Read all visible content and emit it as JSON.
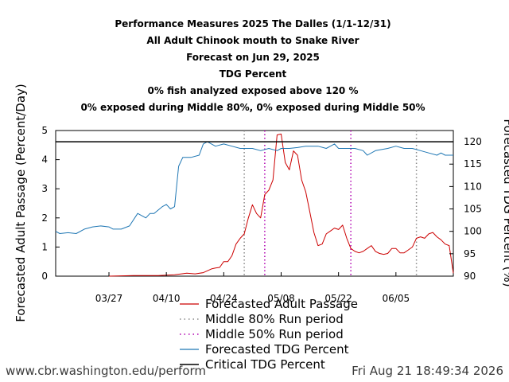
{
  "chart_data": {
    "type": "line",
    "title_lines": [
      "Performance Measures 2025 The Dalles (1/1-12/31)",
      "All Adult Chinook mouth to Snake River",
      "Forecast on Jun 29, 2025",
      "TDG Percent",
      "0% fish analyzed exposed above 120 %",
      "0% exposed during Middle 80%, 0% exposed during Middle 50%"
    ],
    "ylabel_left": "Forecasted Adult Passage (Percent/Day)",
    "ylabel_right": "Forecasted TDG Percent (%)",
    "x_domain": [
      "2025-03-14",
      "2025-06-19"
    ],
    "x_ticks": [
      {
        "date": "2025-03-27",
        "label": "03/27"
      },
      {
        "date": "2025-04-10",
        "label": "04/10"
      },
      {
        "date": "2025-04-24",
        "label": "04/24"
      },
      {
        "date": "2025-05-08",
        "label": "05/08"
      },
      {
        "date": "2025-05-22",
        "label": "05/22"
      },
      {
        "date": "2025-06-05",
        "label": "06/05"
      }
    ],
    "ylim_left": [
      0,
      5
    ],
    "yticks_left": [
      "0",
      "1",
      "2",
      "3",
      "4",
      "5"
    ],
    "ylim_right": [
      90,
      122.5
    ],
    "yticks_right": [
      "90",
      "95",
      "100",
      "105",
      "110",
      "115",
      "120"
    ],
    "critical_tdg": 120,
    "middle80": [
      "2025-04-29",
      "2025-06-10"
    ],
    "middle50": [
      "2025-05-04",
      "2025-05-25"
    ],
    "colors": {
      "passage": "#cc0000",
      "tdg": "#1f77b4",
      "middle80": "#888888",
      "middle50": "#b000b0",
      "critical": "#000000"
    },
    "legend": [
      {
        "key": "passage",
        "label": "Forecasted Adult Passage"
      },
      {
        "key": "middle80",
        "label": "Middle 80% Run period"
      },
      {
        "key": "middle50",
        "label": "Middle 50% Run period"
      },
      {
        "key": "tdg",
        "label": "Forecasted TDG Percent"
      },
      {
        "key": "critical",
        "label": "Critical TDG Percent"
      }
    ],
    "series": [
      {
        "key": "passage",
        "points": [
          [
            "2025-03-27",
            0.0
          ],
          [
            "2025-04-02",
            0.02
          ],
          [
            "2025-04-08",
            0.02
          ],
          [
            "2025-04-12",
            0.05
          ],
          [
            "2025-04-15",
            0.1
          ],
          [
            "2025-04-17",
            0.08
          ],
          [
            "2025-04-19",
            0.12
          ],
          [
            "2025-04-21",
            0.25
          ],
          [
            "2025-04-22",
            0.28
          ],
          [
            "2025-04-23",
            0.3
          ],
          [
            "2025-04-24",
            0.5
          ],
          [
            "2025-04-25",
            0.5
          ],
          [
            "2025-04-26",
            0.7
          ],
          [
            "2025-04-27",
            1.1
          ],
          [
            "2025-04-28",
            1.3
          ],
          [
            "2025-04-29",
            1.45
          ],
          [
            "2025-04-30",
            2.0
          ],
          [
            "2025-05-01",
            2.45
          ],
          [
            "2025-05-02",
            2.15
          ],
          [
            "2025-05-03",
            2.0
          ],
          [
            "2025-05-04",
            2.8
          ],
          [
            "2025-05-05",
            2.95
          ],
          [
            "2025-05-06",
            3.3
          ],
          [
            "2025-05-07",
            4.85
          ],
          [
            "2025-05-08",
            4.88
          ],
          [
            "2025-05-09",
            3.9
          ],
          [
            "2025-05-10",
            3.65
          ],
          [
            "2025-05-11",
            4.3
          ],
          [
            "2025-05-12",
            4.15
          ],
          [
            "2025-05-13",
            3.3
          ],
          [
            "2025-05-14",
            2.9
          ],
          [
            "2025-05-15",
            2.2
          ],
          [
            "2025-05-16",
            1.5
          ],
          [
            "2025-05-17",
            1.05
          ],
          [
            "2025-05-18",
            1.1
          ],
          [
            "2025-05-19",
            1.45
          ],
          [
            "2025-05-20",
            1.55
          ],
          [
            "2025-05-21",
            1.65
          ],
          [
            "2025-05-22",
            1.6
          ],
          [
            "2025-05-23",
            1.75
          ],
          [
            "2025-05-24",
            1.3
          ],
          [
            "2025-05-25",
            0.95
          ],
          [
            "2025-05-26",
            0.85
          ],
          [
            "2025-05-27",
            0.8
          ],
          [
            "2025-05-28",
            0.85
          ],
          [
            "2025-05-29",
            0.95
          ],
          [
            "2025-05-30",
            1.05
          ],
          [
            "2025-05-31",
            0.85
          ],
          [
            "2025-06-01",
            0.78
          ],
          [
            "2025-06-02",
            0.75
          ],
          [
            "2025-06-03",
            0.78
          ],
          [
            "2025-06-04",
            0.95
          ],
          [
            "2025-06-05",
            0.95
          ],
          [
            "2025-06-06",
            0.8
          ],
          [
            "2025-06-07",
            0.8
          ],
          [
            "2025-06-08",
            0.9
          ],
          [
            "2025-06-09",
            1.0
          ],
          [
            "2025-06-10",
            1.3
          ],
          [
            "2025-06-11",
            1.35
          ],
          [
            "2025-06-12",
            1.3
          ],
          [
            "2025-06-13",
            1.45
          ],
          [
            "2025-06-14",
            1.5
          ],
          [
            "2025-06-15",
            1.35
          ],
          [
            "2025-06-16",
            1.25
          ],
          [
            "2025-06-17",
            1.1
          ],
          [
            "2025-06-18",
            1.05
          ],
          [
            "2025-06-19",
            0.1
          ]
        ]
      },
      {
        "key": "tdg",
        "points": [
          [
            "2025-03-14",
            100.0
          ],
          [
            "2025-03-15",
            99.5
          ],
          [
            "2025-03-17",
            99.7
          ],
          [
            "2025-03-19",
            99.5
          ],
          [
            "2025-03-21",
            100.5
          ],
          [
            "2025-03-23",
            101.0
          ],
          [
            "2025-03-25",
            101.2
          ],
          [
            "2025-03-27",
            101.0
          ],
          [
            "2025-03-28",
            100.5
          ],
          [
            "2025-03-30",
            100.5
          ],
          [
            "2025-04-01",
            101.2
          ],
          [
            "2025-04-03",
            104.0
          ],
          [
            "2025-04-05",
            103.0
          ],
          [
            "2025-04-06",
            104.0
          ],
          [
            "2025-04-07",
            104.0
          ],
          [
            "2025-04-09",
            105.5
          ],
          [
            "2025-04-10",
            106.0
          ],
          [
            "2025-04-11",
            105.0
          ],
          [
            "2025-04-12",
            105.5
          ],
          [
            "2025-04-13",
            114.5
          ],
          [
            "2025-04-14",
            116.5
          ],
          [
            "2025-04-16",
            116.5
          ],
          [
            "2025-04-18",
            117.0
          ],
          [
            "2025-04-19",
            119.5
          ],
          [
            "2025-04-20",
            120.0
          ],
          [
            "2025-04-21",
            119.5
          ],
          [
            "2025-04-22",
            119.0
          ],
          [
            "2025-04-24",
            119.5
          ],
          [
            "2025-04-26",
            119.0
          ],
          [
            "2025-04-28",
            118.5
          ],
          [
            "2025-05-01",
            118.5
          ],
          [
            "2025-05-03",
            118.0
          ],
          [
            "2025-05-05",
            118.5
          ],
          [
            "2025-05-07",
            118.0
          ],
          [
            "2025-05-08",
            118.5
          ],
          [
            "2025-05-10",
            118.5
          ],
          [
            "2025-05-12",
            118.7
          ],
          [
            "2025-05-14",
            119.0
          ],
          [
            "2025-05-17",
            119.0
          ],
          [
            "2025-05-19",
            118.5
          ],
          [
            "2025-05-20",
            119.0
          ],
          [
            "2025-05-21",
            119.5
          ],
          [
            "2025-05-22",
            118.5
          ],
          [
            "2025-05-24",
            118.5
          ],
          [
            "2025-05-26",
            118.5
          ],
          [
            "2025-05-28",
            118.0
          ],
          [
            "2025-05-29",
            117.0
          ],
          [
            "2025-05-31",
            118.0
          ],
          [
            "2025-06-03",
            118.5
          ],
          [
            "2025-06-05",
            119.0
          ],
          [
            "2025-06-07",
            118.5
          ],
          [
            "2025-06-09",
            118.5
          ],
          [
            "2025-06-11",
            118.0
          ],
          [
            "2025-06-13",
            117.5
          ],
          [
            "2025-06-15",
            117.0
          ],
          [
            "2025-06-16",
            117.5
          ],
          [
            "2025-06-17",
            117.0
          ],
          [
            "2025-06-19",
            117.0
          ]
        ]
      }
    ]
  },
  "footer": {
    "url": "www.cbr.washington.edu/perform",
    "timestamp": "Fri Aug 21 18:49:34 2026"
  }
}
